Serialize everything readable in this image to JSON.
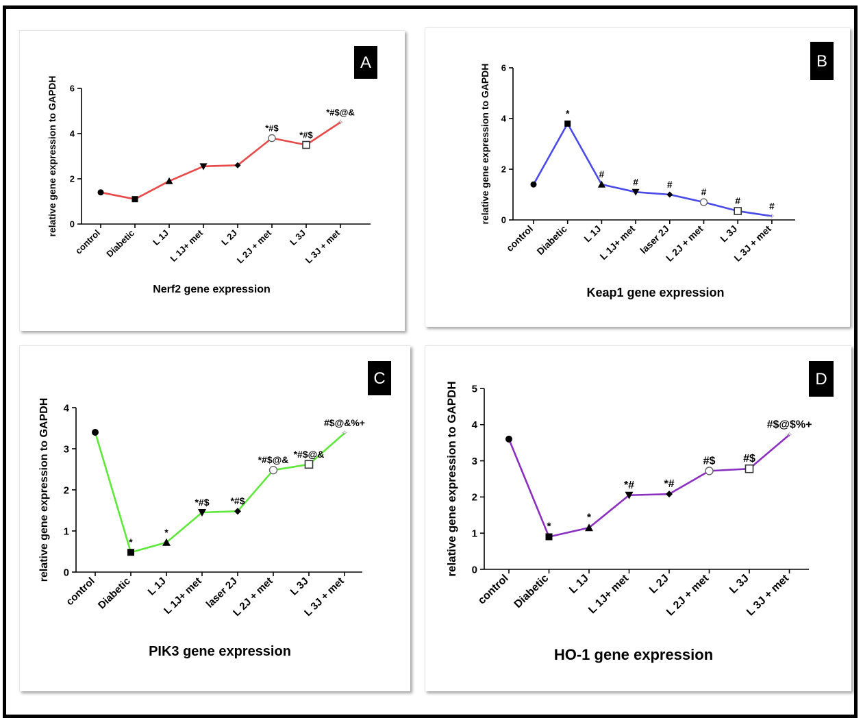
{
  "chart_data": [
    {
      "type": "line",
      "panel_label": "A",
      "title": "Nerf2 gene expression",
      "ylabel": "relative gene expression to GAPDH",
      "xlabel": "",
      "ylim": [
        0,
        6
      ],
      "yticks": [
        0,
        2,
        4,
        6
      ],
      "color": "#e84a4a",
      "categories": [
        "control",
        "Diabetic",
        "L 1J",
        "L 1J+ met",
        "L 2J",
        "L 2J + met",
        "L 3J",
        "L 3J + met"
      ],
      "values": [
        1.4,
        1.1,
        1.9,
        2.55,
        2.6,
        3.8,
        3.5,
        4.5
      ],
      "markers": [
        "circle",
        "square",
        "triangle",
        "triangle-down",
        "diamond",
        "circle-open",
        "square-open",
        "star"
      ],
      "annotations": [
        "",
        "",
        "",
        "",
        "",
        "*#$",
        "*#$",
        "*#$@&"
      ]
    },
    {
      "type": "line",
      "panel_label": "B",
      "title": "Keap1 gene expression",
      "ylabel": "relative gene expression to GAPDH",
      "xlabel": "",
      "ylim": [
        0,
        6
      ],
      "yticks": [
        0,
        2,
        4,
        6
      ],
      "color": "#4a4ae8",
      "categories": [
        "control",
        "Diabetic",
        "L 1J",
        "L 1J+ met",
        "laser 2J",
        "L 2J + met",
        "L 3J",
        "L 3J + met"
      ],
      "values": [
        1.4,
        3.8,
        1.4,
        1.1,
        1.0,
        0.7,
        0.35,
        0.15
      ],
      "markers": [
        "circle",
        "square",
        "triangle",
        "triangle-down",
        "diamond",
        "circle-open",
        "square-open",
        "star"
      ],
      "annotations": [
        "",
        "*",
        "#",
        "#",
        "#",
        "#",
        "#",
        "#"
      ]
    },
    {
      "type": "line",
      "panel_label": "C",
      "title": "PIK3 gene expression",
      "ylabel": "relative gene expression to GAPDH",
      "xlabel": "",
      "ylim": [
        0,
        4
      ],
      "yticks": [
        0,
        1,
        2,
        3,
        4
      ],
      "color": "#5ee83a",
      "categories": [
        "control",
        "Diabetic",
        "L 1J",
        "L 1J+ met",
        "laser 2J",
        "L 2J + met",
        "L 3J",
        "L 3J + met"
      ],
      "values": [
        3.4,
        0.48,
        0.72,
        1.45,
        1.48,
        2.48,
        2.62,
        3.38
      ],
      "markers": [
        "circle",
        "square",
        "triangle",
        "triangle-down",
        "diamond",
        "circle-open",
        "square-open",
        "star"
      ],
      "annotations": [
        "",
        "*",
        "*",
        "*#$",
        "*#$",
        "*#$@&",
        "*#$@&",
        "#$@&%+"
      ]
    },
    {
      "type": "line",
      "panel_label": "D",
      "title": "HO-1 gene expression",
      "ylabel": "relative gene expression to GAPDH",
      "xlabel": "",
      "ylim": [
        0,
        5
      ],
      "yticks": [
        0,
        1,
        2,
        3,
        4,
        5
      ],
      "color": "#8a2fc0",
      "categories": [
        "control",
        "Diabetic",
        "L 1J",
        "L 1J+ met",
        "L 2J",
        "L 2J + met",
        "L 3J",
        "L 3J + met"
      ],
      "values": [
        3.6,
        0.9,
        1.15,
        2.05,
        2.08,
        2.72,
        2.78,
        3.72
      ],
      "markers": [
        "circle",
        "square",
        "triangle",
        "triangle-down",
        "diamond",
        "circle-open",
        "square-open",
        "star"
      ],
      "annotations": [
        "",
        "*",
        "*",
        "*#",
        "*#",
        "#$",
        "#$",
        "#$@$%+"
      ]
    }
  ]
}
